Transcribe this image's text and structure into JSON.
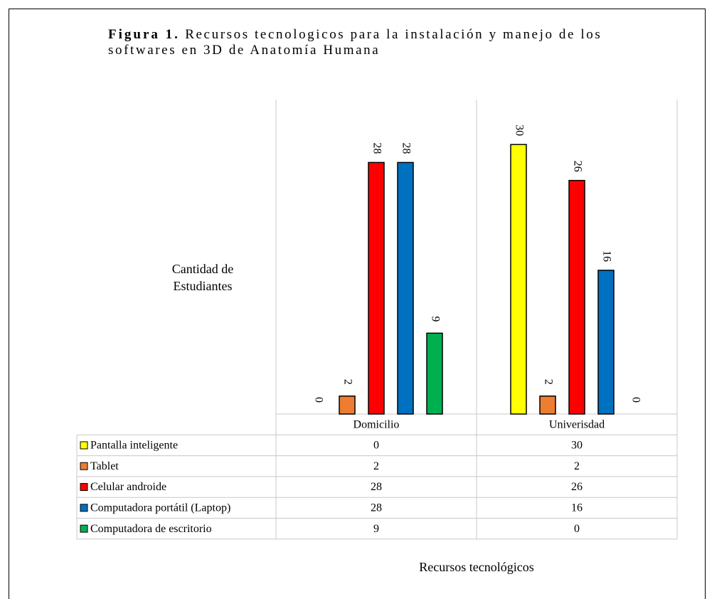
{
  "chart_data": {
    "type": "bar",
    "title_label": "Figura 1.",
    "title": "Recursos tecnologicos para la instalación y manejo de los softwares en 3D de Anatomía Humana",
    "y_label": "Cantidad de Estudiantes",
    "x_label": "Recursos tecnológicos",
    "categories": [
      "Domicilio",
      "Univerisdad"
    ],
    "ylim": [
      0,
      35
    ],
    "series": [
      {
        "name": "Pantalla inteligente",
        "color": "#ffff00",
        "values": [
          0,
          30
        ]
      },
      {
        "name": "Tablet",
        "color": "#ed7d31",
        "values": [
          2,
          2
        ]
      },
      {
        "name": "Celular androide",
        "color": "#ff0000",
        "values": [
          28,
          26
        ]
      },
      {
        "name": "Computadora portátil (Laptop)",
        "color": "#0070c0",
        "values": [
          28,
          16
        ]
      },
      {
        "name": "Computadora de escritorio",
        "color": "#00b050",
        "values": [
          9,
          0
        ]
      }
    ]
  }
}
